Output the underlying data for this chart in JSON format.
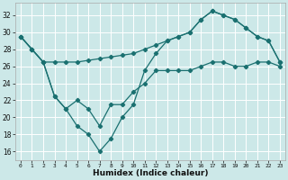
{
  "xlabel": "Humidex (Indice chaleur)",
  "xlim": [
    -0.5,
    23.5
  ],
  "ylim": [
    15,
    33.5
  ],
  "yticks": [
    16,
    18,
    20,
    22,
    24,
    26,
    28,
    30,
    32
  ],
  "xticks": [
    0,
    1,
    2,
    3,
    4,
    5,
    6,
    7,
    8,
    9,
    10,
    11,
    12,
    13,
    14,
    15,
    16,
    17,
    18,
    19,
    20,
    21,
    22,
    23
  ],
  "background_color": "#cce8e8",
  "grid_color": "#ffffff",
  "line_color": "#1a7070",
  "line1_x": [
    0,
    1,
    2,
    3,
    4,
    5,
    6,
    7,
    8,
    9,
    10,
    11,
    12,
    13,
    14,
    15,
    16,
    17,
    18,
    19,
    20,
    21,
    22,
    23
  ],
  "line1_y": [
    29.5,
    28.0,
    26.5,
    26.5,
    26.5,
    26.5,
    26.7,
    26.9,
    27.1,
    27.3,
    27.5,
    28.0,
    28.5,
    29.0,
    29.5,
    30.0,
    31.5,
    32.5,
    32.0,
    31.5,
    30.5,
    29.5,
    29.0,
    26.5
  ],
  "line2_x": [
    0,
    1,
    2,
    3,
    4,
    5,
    6,
    7,
    8,
    9,
    10,
    11,
    12,
    13,
    14,
    15,
    16,
    17,
    18,
    19,
    20,
    21,
    22,
    23
  ],
  "line2_y": [
    29.5,
    28.0,
    26.5,
    22.5,
    21.0,
    19.0,
    18.0,
    16.0,
    17.5,
    20.0,
    21.5,
    25.5,
    27.5,
    29.0,
    29.5,
    30.0,
    31.5,
    32.5,
    32.0,
    31.5,
    30.5,
    29.5,
    29.0,
    26.5
  ],
  "line3_x": [
    0,
    1,
    2,
    3,
    4,
    5,
    6,
    7,
    8,
    9,
    10,
    11,
    12,
    13,
    14,
    15,
    16,
    17,
    18,
    19,
    20,
    21,
    22,
    23
  ],
  "line3_y": [
    29.5,
    28.0,
    26.5,
    22.5,
    21.0,
    22.0,
    21.0,
    19.0,
    21.5,
    21.5,
    23.0,
    24.0,
    25.5,
    25.5,
    25.5,
    25.5,
    26.0,
    26.5,
    26.5,
    26.0,
    26.0,
    26.5,
    26.5,
    26.0
  ]
}
